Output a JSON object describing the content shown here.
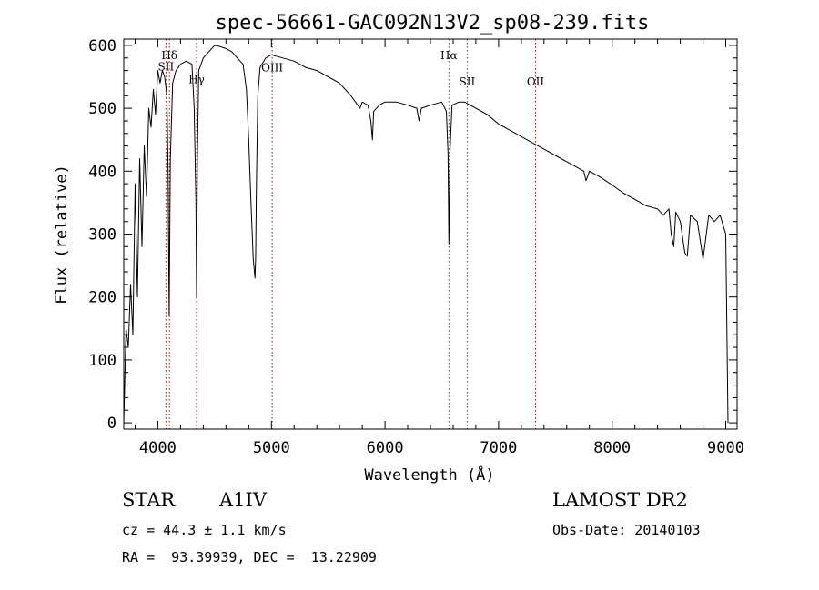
{
  "chart_data": {
    "type": "line",
    "title": "spec-56661-GAC092N13V2_sp08-239.fits",
    "xlabel": "Wavelength (Å)",
    "ylabel": "Flux (relative)",
    "xlim": [
      3700,
      9100
    ],
    "ylim": [
      -10,
      610
    ],
    "xticks": [
      4000,
      5000,
      6000,
      7000,
      8000,
      9000
    ],
    "xtick_labels": [
      "4000",
      "5000",
      "6000",
      "7000",
      "8000",
      "9000"
    ],
    "yticks": [
      0,
      100,
      200,
      300,
      400,
      500,
      600
    ],
    "ytick_labels": [
      "0",
      "100",
      "200",
      "300",
      "400",
      "500",
      "600"
    ],
    "grid": false,
    "line_color": "#000000",
    "marker_color": "#cc0000",
    "spectral_lines": [
      {
        "label": "Hδ",
        "wavelength": 4102,
        "label_flux": 578
      },
      {
        "label": "SII",
        "wavelength": 4072,
        "label_flux": 560
      },
      {
        "label": "Hγ",
        "wavelength": 4341,
        "label_flux": 540
      },
      {
        "label": "OIII",
        "wavelength": 5007,
        "label_flux": 559
      },
      {
        "label": "Hα",
        "wavelength": 6563,
        "label_flux": 578
      },
      {
        "label": "OII",
        "wavelength": 7325,
        "label_flux": 536
      },
      {
        "label": "SII",
        "wavelength": 6724,
        "label_flux": 536
      }
    ],
    "series": [
      {
        "x": [
          3700,
          3720,
          3740,
          3760,
          3780,
          3800,
          3820,
          3840,
          3860,
          3880,
          3900,
          3920,
          3940,
          3960,
          3980,
          4000,
          4020,
          4040,
          4060,
          4080,
          4090,
          4100,
          4110,
          4130,
          4160,
          4200,
          4250,
          4300,
          4320,
          4335,
          4341,
          4348,
          4360,
          4400,
          4450,
          4500,
          4550,
          4600,
          4650,
          4700,
          4750,
          4780,
          4800,
          4820,
          4840,
          4855,
          4861,
          4868,
          4880,
          4900,
          4950,
          5000,
          5100,
          5200,
          5300,
          5400,
          5500,
          5600,
          5700,
          5780,
          5800,
          5850,
          5875,
          5890,
          5900,
          5950,
          6000,
          6100,
          6200,
          6280,
          6300,
          6320,
          6400,
          6500,
          6540,
          6555,
          6563,
          6572,
          6590,
          6650,
          6700,
          6800,
          6900,
          7000,
          7100,
          7200,
          7300,
          7400,
          7500,
          7600,
          7700,
          7750,
          7770,
          7800,
          7900,
          8000,
          8100,
          8200,
          8300,
          8400,
          8450,
          8500,
          8520,
          8542,
          8560,
          8600,
          8640,
          8662,
          8690,
          8750,
          8800,
          8850,
          8900,
          8950,
          9000,
          9020
        ],
        "y": [
          0,
          150,
          120,
          220,
          140,
          380,
          200,
          420,
          280,
          440,
          360,
          500,
          470,
          530,
          490,
          560,
          540,
          560,
          550,
          520,
          400,
          170,
          420,
          540,
          560,
          570,
          575,
          570,
          500,
          350,
          200,
          420,
          560,
          580,
          590,
          600,
          598,
          595,
          590,
          580,
          570,
          530,
          450,
          350,
          260,
          230,
          260,
          380,
          520,
          565,
          580,
          585,
          580,
          575,
          565,
          560,
          550,
          540,
          520,
          500,
          510,
          505,
          480,
          450,
          495,
          505,
          510,
          510,
          505,
          500,
          480,
          500,
          505,
          510,
          495,
          430,
          285,
          430,
          505,
          510,
          510,
          500,
          490,
          475,
          465,
          455,
          445,
          435,
          425,
          415,
          405,
          400,
          385,
          400,
          390,
          378,
          365,
          355,
          345,
          340,
          330,
          340,
          300,
          280,
          335,
          320,
          270,
          265,
          330,
          320,
          260,
          330,
          320,
          330,
          300,
          0
        ]
      }
    ]
  },
  "footer": {
    "object_type": "STAR",
    "subclass": "A1IV",
    "cz": "cz = 44.3 ± 1.1 km/s",
    "radec": "RA =  93.39939, DEC =  13.22909",
    "survey": "LAMOST DR2",
    "obs_date": "Obs-Date: 20140103"
  }
}
